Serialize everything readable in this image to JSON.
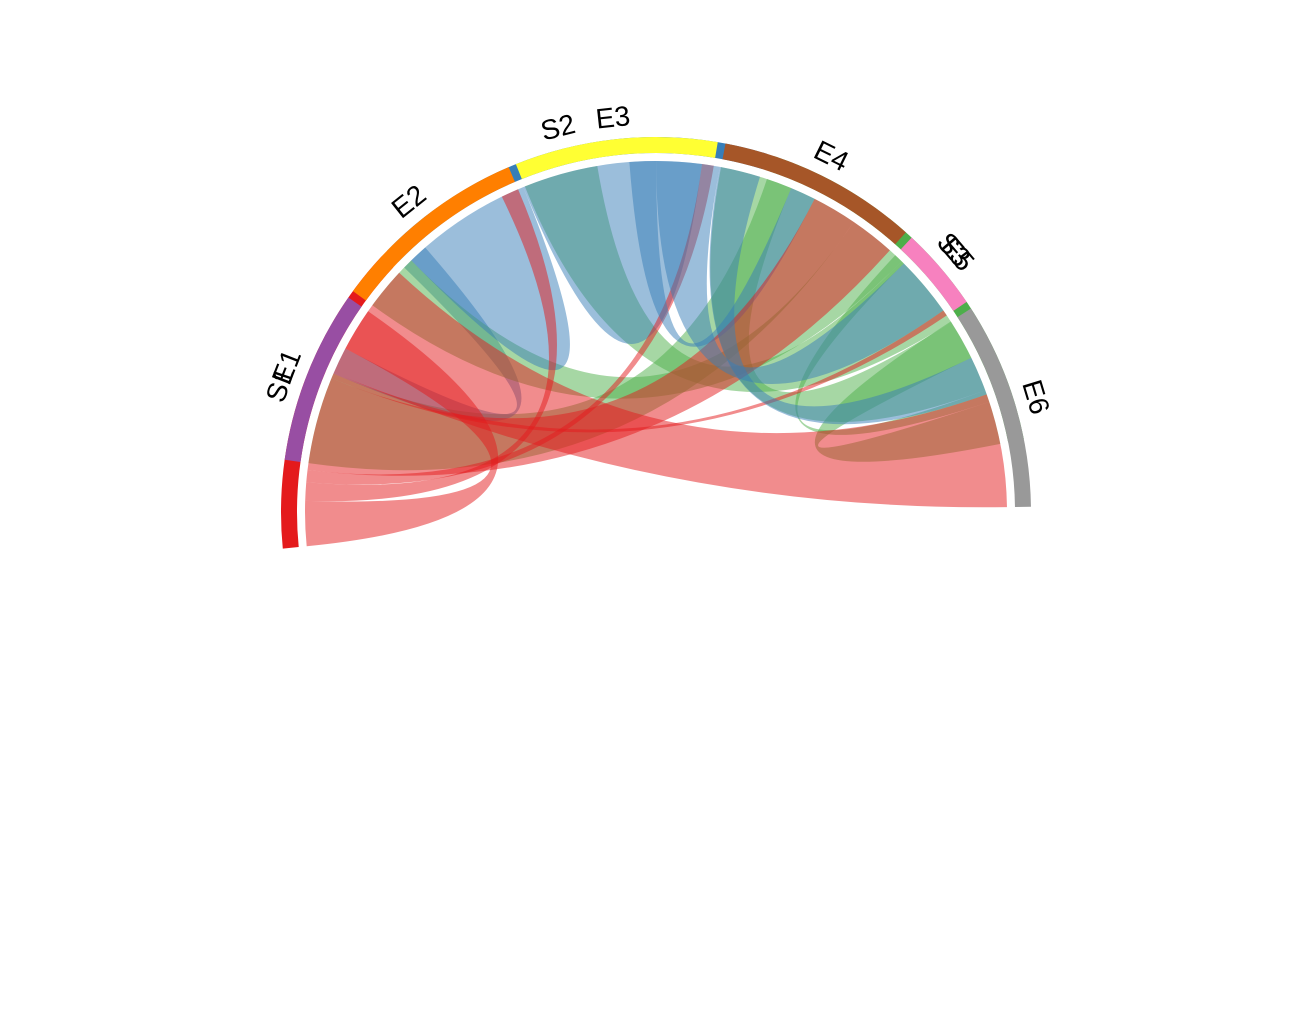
{
  "chart_data": {
    "type": "chord",
    "sources": [
      {
        "name": "S1",
        "color": "#E41A1C"
      },
      {
        "name": "S2",
        "color": "#377EB8"
      },
      {
        "name": "S3",
        "color": "#4DAF4A"
      }
    ],
    "targets": [
      {
        "name": "E1",
        "color": "#984EA3"
      },
      {
        "name": "E2",
        "color": "#FF7F00"
      },
      {
        "name": "E3",
        "color": "#FFFF33"
      },
      {
        "name": "E4",
        "color": "#A65628"
      },
      {
        "name": "E5",
        "color": "#F781BF"
      },
      {
        "name": "E6",
        "color": "#999999"
      }
    ],
    "flows": [
      {
        "source": "S3",
        "target": "E1",
        "value": 4.7
      },
      {
        "source": "S2",
        "target": "E1",
        "value": 1.4
      },
      {
        "source": "S1",
        "target": "E1",
        "value": 2.2
      },
      {
        "source": "S3",
        "target": "E2",
        "value": 3.0
      },
      {
        "source": "S2",
        "target": "E2",
        "value": 5.6
      },
      {
        "source": "S1",
        "target": "E2",
        "value": 0.9
      },
      {
        "source": "S3",
        "target": "E3",
        "value": 3.8
      },
      {
        "source": "S2",
        "target": "E3",
        "value": 5.3
      },
      {
        "source": "S1",
        "target": "E3",
        "value": 0.6
      },
      {
        "source": "S3",
        "target": "E4",
        "value": 3.7
      },
      {
        "source": "S2",
        "target": "E4",
        "value": 1.3
      },
      {
        "source": "S1",
        "target": "E4",
        "value": 4.6
      },
      {
        "source": "S3",
        "target": "E5",
        "value": 0.6
      },
      {
        "source": "S2",
        "target": "E5",
        "value": 3.1
      },
      {
        "source": "S1",
        "target": "E5",
        "value": 0.3
      },
      {
        "source": "S3",
        "target": "E6",
        "value": 2.1
      },
      {
        "source": "S2",
        "target": "E6",
        "value": 2.0
      },
      {
        "source": "S1",
        "target": "E6",
        "value": 5.8
      }
    ]
  }
}
